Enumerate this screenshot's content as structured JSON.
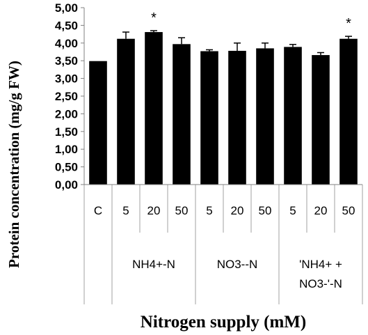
{
  "chart_data": {
    "type": "bar",
    "title": "",
    "xlabel": "Nitrogen supply (mM)",
    "ylabel": "Protein concentration (mg/g FW)",
    "ylim": [
      0,
      5
    ],
    "ytick_step": 0.5,
    "ytick_labels": [
      "0,00",
      "0,50",
      "1,00",
      "1,50",
      "2,00",
      "2,50",
      "3,00",
      "3,50",
      "4,00",
      "4,50",
      "5,00"
    ],
    "grid": false,
    "legend": "none",
    "bar_color": "#000000",
    "categories": [
      "C",
      "5",
      "20",
      "50",
      "5",
      "20",
      "50",
      "5",
      "20",
      "50"
    ],
    "values": [
      3.49,
      4.12,
      4.31,
      3.97,
      3.77,
      3.78,
      3.85,
      3.89,
      3.66,
      4.12
    ],
    "errors": [
      0.0,
      0.19,
      0.04,
      0.18,
      0.04,
      0.22,
      0.15,
      0.07,
      0.07,
      0.07
    ],
    "significance": [
      "",
      "",
      "*",
      "",
      "",
      "",
      "",
      "",
      "",
      "*"
    ],
    "groups": [
      {
        "label_lines": [
          ""
        ],
        "start": 0,
        "end": 0
      },
      {
        "label_lines": [
          "NH4+-N"
        ],
        "start": 1,
        "end": 3
      },
      {
        "label_lines": [
          "NO3--N"
        ],
        "start": 4,
        "end": 6
      },
      {
        "label_lines": [
          "'NH4+ +",
          "NO3-'-N"
        ],
        "start": 7,
        "end": 9
      }
    ]
  }
}
